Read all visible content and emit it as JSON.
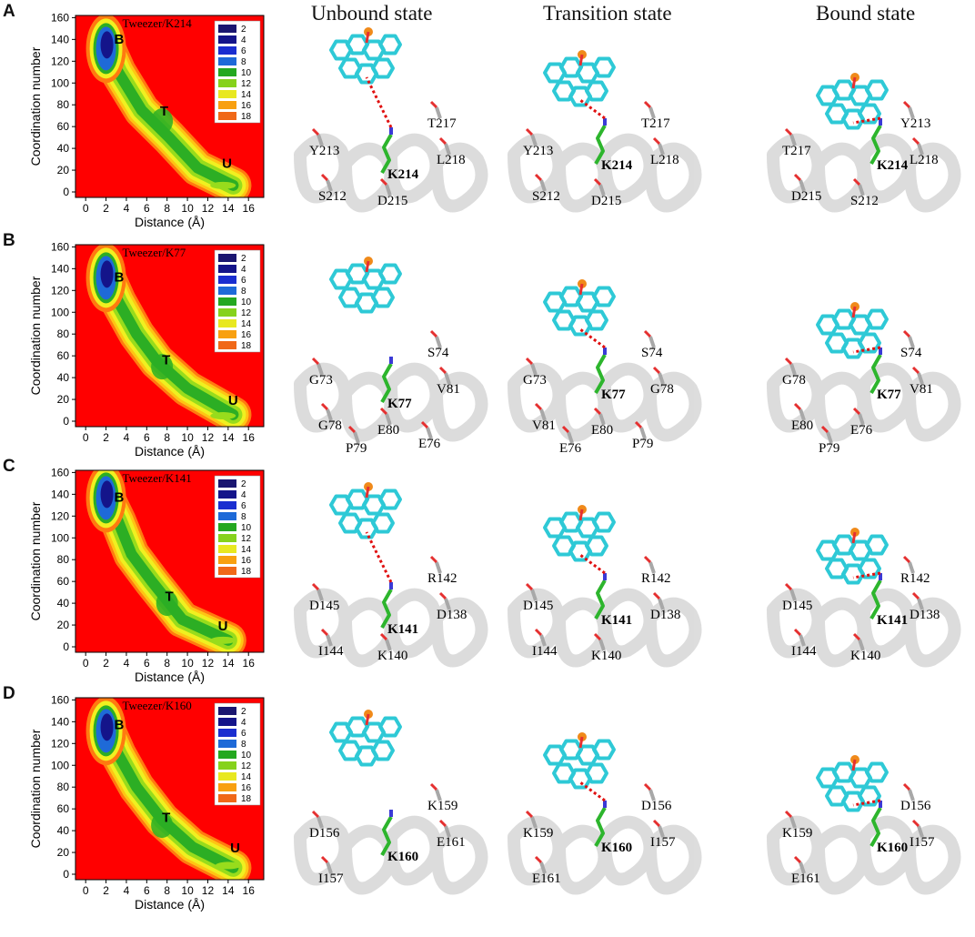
{
  "column_titles": [
    "Unbound state",
    "Transition state",
    "Bound state"
  ],
  "colors": {
    "background": "#ff0000",
    "ligand": "#2ec9d6",
    "lysine": "#2db52d",
    "residue": "#a8a8a8",
    "oxygen": "#e53030",
    "nitrogen": "#3a3ad6",
    "phosphorus": "#f08a1a",
    "hbond": "#e01010",
    "helix": "#d9d9d9"
  },
  "legend_levels": [
    "2",
    "4",
    "6",
    "8",
    "10",
    "12",
    "14",
    "16",
    "18"
  ],
  "legend_colors": [
    "#1a1670",
    "#14148a",
    "#1a2ed0",
    "#1e6ad8",
    "#24a820",
    "#86d21c",
    "#e8e820",
    "#f8a010",
    "#f06818"
  ],
  "panels": [
    {
      "letter": "A",
      "title": "Tweezer/K214",
      "state_labels": {
        "b": "B",
        "t": "T",
        "u": "U"
      },
      "state_pos": {
        "b": [
          2.8,
          136
        ],
        "t": [
          7.3,
          70
        ],
        "u": [
          13.4,
          22
        ]
      },
      "ridge": [
        [
          2,
          135
        ],
        [
          3.2,
          110
        ],
        [
          5.5,
          75
        ],
        [
          8.2,
          50
        ],
        [
          11,
          22
        ],
        [
          14.5,
          6
        ]
      ],
      "chart_data": {
        "type": "heatmap",
        "title": "Tweezer/K214",
        "xlabel": "Distance (Å)",
        "ylabel": "Coordination number",
        "xticks": [
          "0",
          "2",
          "4",
          "6",
          "8",
          "10",
          "12",
          "14",
          "16"
        ],
        "yticks": [
          "0",
          "20",
          "40",
          "60",
          "80",
          "100",
          "120",
          "140",
          "160"
        ],
        "xlim": [
          -1,
          17.5
        ],
        "ylim": [
          -5,
          162
        ],
        "colorbar_levels": [
          2,
          4,
          6,
          8,
          10,
          12,
          14,
          16,
          18
        ],
        "states": [
          {
            "label": "B",
            "distance": 2.0,
            "coordination": 130
          },
          {
            "label": "T",
            "distance": 7.5,
            "coordination": 65
          },
          {
            "label": "U",
            "distance": 13.5,
            "coordination": 6
          }
        ]
      },
      "unbound": {
        "lys": "K214",
        "residues": [
          "T217",
          "Y213",
          "L218",
          "S212",
          "D215"
        ]
      },
      "transition": {
        "lys": "K214",
        "residues": [
          "T217",
          "Y213",
          "L218",
          "S212",
          "D215"
        ]
      },
      "bound": {
        "lys": "K214",
        "residues": [
          "Y213",
          "T217",
          "L218",
          "D215",
          "S212"
        ]
      }
    },
    {
      "letter": "B",
      "title": "Tweezer/K77",
      "state_labels": {
        "b": "B",
        "t": "T",
        "u": "U"
      },
      "state_pos": {
        "b": [
          2.8,
          128
        ],
        "t": [
          7.5,
          52
        ],
        "u": [
          14.0,
          15
        ]
      },
      "ridge": [
        [
          2,
          135
        ],
        [
          3.2,
          110
        ],
        [
          5.0,
          80
        ],
        [
          7.0,
          55
        ],
        [
          10,
          30
        ],
        [
          14.5,
          6
        ]
      ],
      "chart_data": {
        "type": "heatmap",
        "title": "Tweezer/K77",
        "xlabel": "Distance (Å)",
        "ylabel": "Coordination number",
        "xticks": [
          "0",
          "2",
          "4",
          "6",
          "8",
          "10",
          "12",
          "14",
          "16"
        ],
        "yticks": [
          "0",
          "20",
          "40",
          "60",
          "80",
          "100",
          "120",
          "140",
          "160"
        ],
        "xlim": [
          -1,
          17.5
        ],
        "ylim": [
          -5,
          162
        ],
        "colorbar_levels": [
          2,
          4,
          6,
          8,
          10,
          12,
          14,
          16,
          18
        ],
        "states": [
          {
            "label": "B",
            "distance": 2.0,
            "coordination": 130
          },
          {
            "label": "T",
            "distance": 7.5,
            "coordination": 50
          },
          {
            "label": "U",
            "distance": 13.5,
            "coordination": 5
          }
        ]
      },
      "unbound": {
        "lys": "K77",
        "residues": [
          "S74",
          "G73",
          "V81",
          "G78",
          "E80",
          "P79",
          "E76"
        ]
      },
      "transition": {
        "lys": "K77",
        "residues": [
          "S74",
          "G73",
          "G78",
          "V81",
          "E80",
          "E76",
          "P79"
        ]
      },
      "bound": {
        "lys": "K77",
        "residues": [
          "S74",
          "G78",
          "V81",
          "E80",
          "E76",
          "P79"
        ]
      }
    },
    {
      "letter": "C",
      "title": "Tweezer/K141",
      "state_labels": {
        "b": "B",
        "t": "T",
        "u": "U"
      },
      "state_pos": {
        "b": [
          2.8,
          133
        ],
        "t": [
          7.8,
          42
        ],
        "u": [
          13.0,
          15
        ]
      },
      "ridge": [
        [
          2,
          138
        ],
        [
          3.2,
          115
        ],
        [
          4.5,
          85
        ],
        [
          6.5,
          60
        ],
        [
          9.5,
          25
        ],
        [
          14.0,
          6
        ]
      ],
      "chart_data": {
        "type": "heatmap",
        "title": "Tweezer/K141",
        "xlabel": "Distance (Å)",
        "ylabel": "Coordination number",
        "xticks": [
          "0",
          "2",
          "4",
          "6",
          "8",
          "10",
          "12",
          "14",
          "16"
        ],
        "yticks": [
          "0",
          "20",
          "40",
          "60",
          "80",
          "100",
          "120",
          "140",
          "160"
        ],
        "xlim": [
          -1,
          17.5
        ],
        "ylim": [
          -5,
          162
        ],
        "colorbar_levels": [
          2,
          4,
          6,
          8,
          10,
          12,
          14,
          16,
          18
        ],
        "states": [
          {
            "label": "B",
            "distance": 2.0,
            "coordination": 135
          },
          {
            "label": "T",
            "distance": 8.0,
            "coordination": 40
          },
          {
            "label": "U",
            "distance": 13.5,
            "coordination": 6
          }
        ]
      },
      "unbound": {
        "lys": "K141",
        "residues": [
          "R142",
          "D145",
          "D138",
          "I144",
          "K140"
        ]
      },
      "transition": {
        "lys": "K141",
        "residues": [
          "R142",
          "D145",
          "D138",
          "I144",
          "K140"
        ]
      },
      "bound": {
        "lys": "K141",
        "residues": [
          "R142",
          "D145",
          "D138",
          "I144",
          "K140"
        ]
      }
    },
    {
      "letter": "D",
      "title": "Tweezer/K160",
      "state_labels": {
        "b": "B",
        "t": "T",
        "u": "U"
      },
      "state_pos": {
        "b": [
          2.8,
          133
        ],
        "t": [
          7.5,
          48
        ],
        "u": [
          14.2,
          20
        ]
      },
      "ridge": [
        [
          2,
          135
        ],
        [
          3.2,
          110
        ],
        [
          5.0,
          80
        ],
        [
          7.5,
          50
        ],
        [
          10.5,
          25
        ],
        [
          14.5,
          6
        ]
      ],
      "chart_data": {
        "type": "heatmap",
        "title": "Tweezer/K160",
        "xlabel": "Distance (Å)",
        "ylabel": "Coordination number",
        "xticks": [
          "0",
          "2",
          "4",
          "6",
          "8",
          "10",
          "12",
          "14",
          "16"
        ],
        "yticks": [
          "0",
          "20",
          "40",
          "60",
          "80",
          "100",
          "120",
          "140",
          "160"
        ],
        "xlim": [
          -1,
          17.5
        ],
        "ylim": [
          -5,
          162
        ],
        "colorbar_levels": [
          2,
          4,
          6,
          8,
          10,
          12,
          14,
          16,
          18
        ],
        "states": [
          {
            "label": "B",
            "distance": 2.0,
            "coordination": 130
          },
          {
            "label": "T",
            "distance": 7.5,
            "coordination": 45
          },
          {
            "label": "U",
            "distance": 14.0,
            "coordination": 8
          }
        ]
      },
      "unbound": {
        "lys": "K160",
        "residues": [
          "K159",
          "D156",
          "E161",
          "I157"
        ]
      },
      "transition": {
        "lys": "K160",
        "residues": [
          "D156",
          "K159",
          "I157",
          "E161"
        ]
      },
      "bound": {
        "lys": "K160",
        "residues": [
          "D156",
          "K159",
          "I157",
          "E161"
        ]
      }
    }
  ]
}
